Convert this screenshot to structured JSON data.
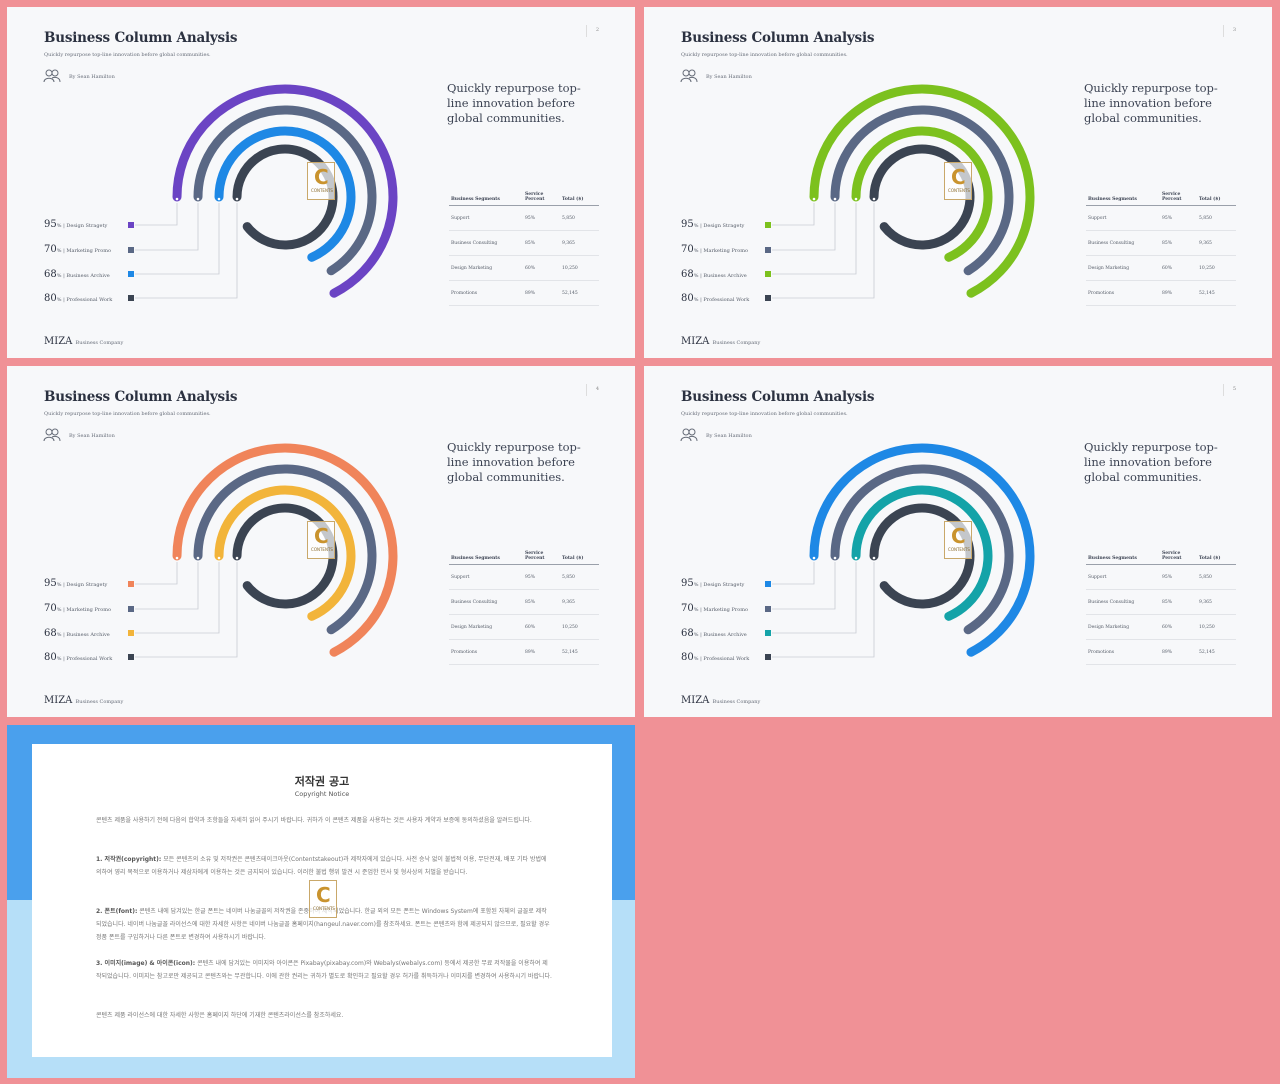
{
  "slides": [
    {
      "title": "Business Column Analysis",
      "subtitle": "Quickly repurpose top-line innovation before global communities.",
      "author": "By Sean Hamilton",
      "page_number": "2",
      "headline": "Quickly repurpose top-line innovation before global communities.",
      "colors": [
        "#6b44c4",
        "#5a6885",
        "#1e88e5",
        "#3b4452"
      ],
      "legend": [
        {
          "value": "95",
          "unit": "%",
          "label": "| Design Stragety"
        },
        {
          "value": "70",
          "unit": "%",
          "label": "| Marketing Promo"
        },
        {
          "value": "68",
          "unit": "%",
          "label": "| Business Archive"
        },
        {
          "value": "80",
          "unit": "%",
          "label": "| Professional Work"
        }
      ],
      "table": {
        "headers": [
          "Business Segments",
          "Service Percent",
          "Total ($)"
        ],
        "rows": [
          [
            "Support",
            "95%",
            "5,850"
          ],
          [
            "Business Consulting",
            "85%",
            "9,365"
          ],
          [
            "Design Marketing",
            "60%",
            "10,250"
          ],
          [
            "Promotions",
            "89%",
            "52,145"
          ]
        ]
      },
      "footer_brand": "MIZA",
      "footer_company": "Business Company"
    },
    {
      "title": "Business Column Analysis",
      "subtitle": "Quickly repurpose top-line innovation before global communities.",
      "author": "By Sean Hamilton",
      "page_number": "3",
      "headline": "Quickly repurpose top-line innovation before global communities.",
      "colors": [
        "#7cc11e",
        "#5a6885",
        "#7cc11e",
        "#3b4452"
      ],
      "legend": [
        {
          "value": "95",
          "unit": "%",
          "label": "| Design Stragety"
        },
        {
          "value": "70",
          "unit": "%",
          "label": "| Marketing Promo"
        },
        {
          "value": "68",
          "unit": "%",
          "label": "| Business Archive"
        },
        {
          "value": "80",
          "unit": "%",
          "label": "| Professional Work"
        }
      ],
      "table": {
        "headers": [
          "Business Segments",
          "Service Percent",
          "Total ($)"
        ],
        "rows": [
          [
            "Support",
            "95%",
            "5,850"
          ],
          [
            "Business Consulting",
            "85%",
            "9,365"
          ],
          [
            "Design Marketing",
            "60%",
            "10,250"
          ],
          [
            "Promotions",
            "89%",
            "52,145"
          ]
        ]
      },
      "footer_brand": "MIZA",
      "footer_company": "Business Company"
    },
    {
      "title": "Business Column Analysis",
      "subtitle": "Quickly repurpose top-line innovation before global communities.",
      "author": "By Sean Hamilton",
      "page_number": "4",
      "headline": "Quickly repurpose top-line innovation before global communities.",
      "colors": [
        "#f0845a",
        "#5a6885",
        "#f2b43a",
        "#3b4452"
      ],
      "legend": [
        {
          "value": "95",
          "unit": "%",
          "label": "| Design Stragety"
        },
        {
          "value": "70",
          "unit": "%",
          "label": "| Marketing Promo"
        },
        {
          "value": "68",
          "unit": "%",
          "label": "| Business Archive"
        },
        {
          "value": "80",
          "unit": "%",
          "label": "| Professional Work"
        }
      ],
      "table": {
        "headers": [
          "Business Segments",
          "Service Percent",
          "Total ($)"
        ],
        "rows": [
          [
            "Support",
            "95%",
            "5,850"
          ],
          [
            "Business Consulting",
            "85%",
            "9,365"
          ],
          [
            "Design Marketing",
            "60%",
            "10,250"
          ],
          [
            "Promotions",
            "89%",
            "52,145"
          ]
        ]
      },
      "footer_brand": "MIZA",
      "footer_company": "Business Company"
    },
    {
      "title": "Business Column Analysis",
      "subtitle": "Quickly repurpose top-line innovation before global communities.",
      "author": "By Sean Hamilton",
      "page_number": "5",
      "headline": "Quickly repurpose top-line innovation before global communities.",
      "colors": [
        "#1e88e5",
        "#5a6885",
        "#14a3a8",
        "#3b4452"
      ],
      "legend": [
        {
          "value": "95",
          "unit": "%",
          "label": "| Design Stragety"
        },
        {
          "value": "70",
          "unit": "%",
          "label": "| Marketing Promo"
        },
        {
          "value": "68",
          "unit": "%",
          "label": "| Business Archive"
        },
        {
          "value": "80",
          "unit": "%",
          "label": "| Professional Work"
        }
      ],
      "table": {
        "headers": [
          "Business Segments",
          "Service Percent",
          "Total ($)"
        ],
        "rows": [
          [
            "Support",
            "95%",
            "5,850"
          ],
          [
            "Business Consulting",
            "85%",
            "9,365"
          ],
          [
            "Design Marketing",
            "60%",
            "10,250"
          ],
          [
            "Promotions",
            "89%",
            "52,145"
          ]
        ]
      },
      "footer_brand": "MIZA",
      "footer_company": "Business Company"
    }
  ],
  "watermark": {
    "letter": "C",
    "text": "CONTENTS"
  },
  "notice": {
    "title": "저작권 공고",
    "subtitle": "Copyright Notice",
    "intro": "콘텐츠 제품을 사용하기 전에 다음의 합약과 조항들을 자세히 읽어 주시기 바랍니다. 귀하가 이 콘텐츠 제품을 사용하는 것은 사용자 계약과 보증에 동의하셨음을 알려드립니다.",
    "item1_head": "1. 저작권(copyright):",
    "item1_body": " 모든 콘텐츠의 소유 및 저작권은 콘텐츠테이크아웃(Contentstakeout)과 제작자에게 있습니다. 사전 승낙 없이 불법적 이용, 무단전재, 배포 기타 방법에 의하여 영리 목적으로 이용하거나 제삼자에게 이용하는 것은 금지되어 있습니다. 이러한 불법 행위 발견 시 준엄한 민사 및 형사상의 처벌을 받습니다.",
    "item2_head": "2. 폰트(font):",
    "item2_body": " 콘텐츠 내에 담겨있는 한글 폰트는 네이버 나눔글꼴의 저작권을 존중하여 제작되었습니다. 한글 외의 모든 폰트는 Windows System에 포함된 자체의 글꼴로 제작되었습니다. 네이버 나눔글꼴 라이선스에 대한 자세한 사항은 네이버 나눔글꼴 홈페이지(hangeul.naver.com)를 참조하세요. 폰트는 콘텐츠와 함께 제공되지 않으므로, 필요할 경우 정품 폰트를 구입하거나 다른 폰트로 변경하여 사용하시기 바랍니다.",
    "item3_head": "3. 이미지(image) & 아이콘(icon):",
    "item3_body": " 콘텐츠 내에 담겨있는 이미지와 아이콘은 Pixabay(pixabay.com)와 Webalys(webalys.com) 등에서 제공한 무료 저작물을 이용하여 제작되었습니다. 이미지는 참고로만 제공되고 콘텐츠와는 무관합니다. 이에 관한 권리는 귀하가 별도로 확인하고 필요할 경우 허가를 취득하거나 이미지를 변경하여 사용하시기 바랍니다.",
    "closing": "콘텐츠 제품 라이선스에 대한 자세한 사항은 홈페이지 하단에 기재한 콘텐츠라이선스를 참조하세요."
  }
}
